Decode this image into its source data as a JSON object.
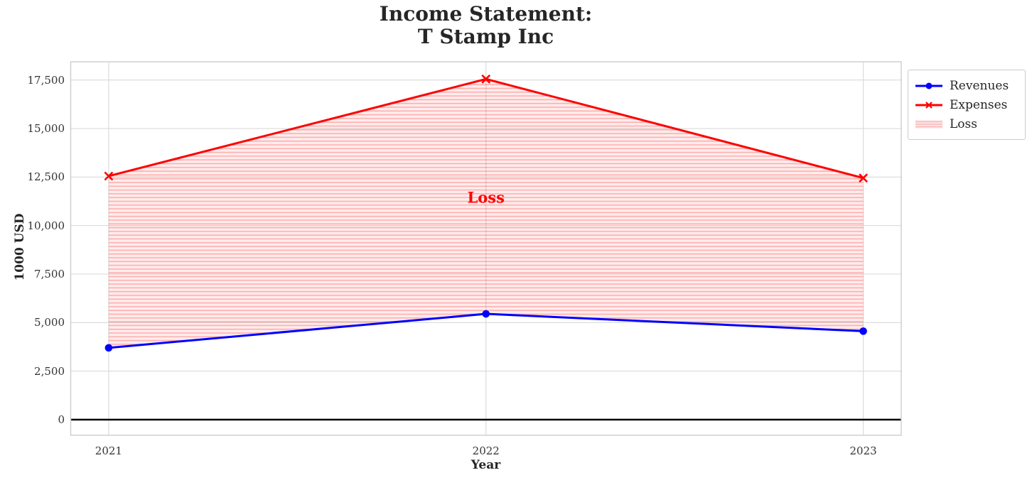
{
  "title": {
    "line1": "Income Statement:",
    "line2": "T Stamp Inc"
  },
  "axes": {
    "xlabel": "Year",
    "ylabel": "1000 USD"
  },
  "annotation": {
    "text": "Loss",
    "color": "#ff0000"
  },
  "legend": {
    "items": [
      {
        "label": "Revenues",
        "swatch": "blue-line-circle-marker"
      },
      {
        "label": "Expenses",
        "swatch": "red-line-x-marker"
      },
      {
        "label": "Loss",
        "swatch": "pink-hatched-patch"
      }
    ]
  },
  "colors": {
    "revenues": "#0000ff",
    "expenses": "#ff0000",
    "loss_fill_bg": "rgba(255,0,0,0.07)",
    "loss_hatch": "rgba(255,0,0,0.26)",
    "grid": "#d9d9d9",
    "spine": "#cccccc",
    "zero_line": "#000000",
    "text": "#262626",
    "tick_text": "#333333"
  },
  "chart_data": {
    "type": "line",
    "title": "Income Statement:\nT Stamp Inc",
    "xlabel": "Year",
    "ylabel": "1000 USD",
    "categories": [
      "2021",
      "2022",
      "2023"
    ],
    "series": [
      {
        "name": "Revenues",
        "values": [
          3700,
          5450,
          4560
        ],
        "color": "#0000ff",
        "marker": "circle"
      },
      {
        "name": "Expenses",
        "values": [
          12550,
          17550,
          12450
        ],
        "color": "#ff0000",
        "marker": "x"
      }
    ],
    "fill_between": {
      "label": "Loss",
      "upper": "Expenses",
      "lower": "Revenues",
      "style": "light-red horizontal hatch"
    },
    "annotation": {
      "text": "Loss",
      "x": "2022",
      "y": 11450
    },
    "yticks": [
      0,
      2500,
      5000,
      7500,
      10000,
      12500,
      15000,
      17500
    ],
    "ytick_labels": [
      "0",
      "2,500",
      "5,000",
      "7,500",
      "10,000",
      "12,500",
      "15,000",
      "17,500"
    ],
    "ylim": [
      -805,
      18440
    ],
    "zero_line": true,
    "grid": true,
    "legend_position": "outside-top-right"
  }
}
